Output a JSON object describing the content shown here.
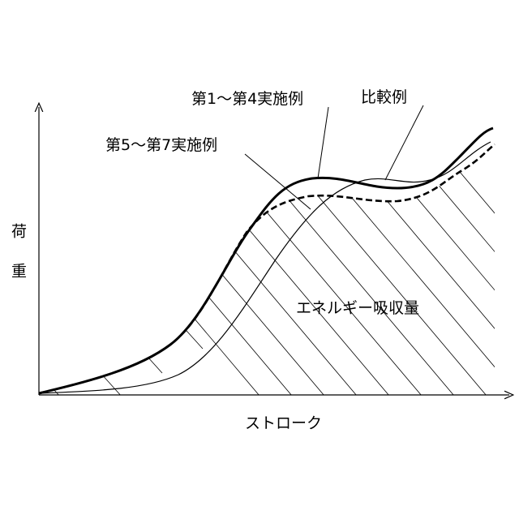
{
  "y_axis": {
    "label": "荷重"
  },
  "x_axis": {
    "label": "ストローク"
  },
  "labels": {
    "examples_1_4": "第1～第4実施例",
    "comparative": "比較例",
    "examples_5_7": "第5～第7実施例",
    "energy": "エネルギー吸収量"
  }
}
